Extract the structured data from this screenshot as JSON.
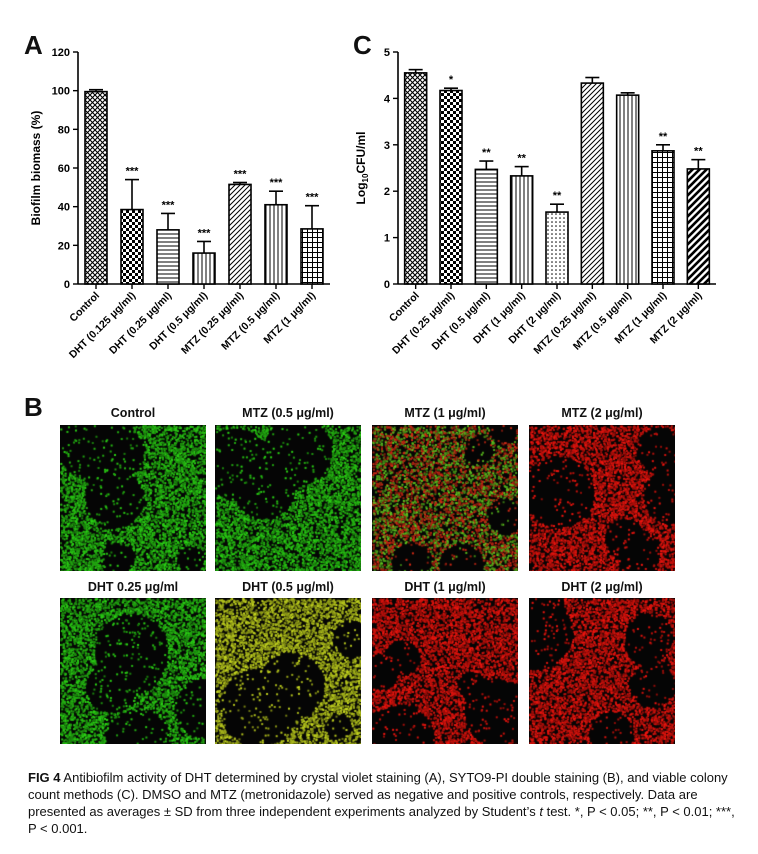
{
  "panels": {
    "A": "A",
    "B": "B",
    "C": "C"
  },
  "chart_data": [
    {
      "type": "bar",
      "panel": "A",
      "ylabel": "Biofilm biomass (%)",
      "ylim": [
        0,
        120
      ],
      "yticks": [
        0,
        20,
        40,
        60,
        80,
        100,
        120
      ],
      "categories": [
        "Control",
        "DHT (0.125 μg/ml)",
        "DHT (0.25 μg/ml)",
        "DHT (0.5 μg/ml)",
        "MTZ (0.25 μg/ml)",
        "MTZ (0.5 μg/ml)",
        "MTZ (1 μg/ml)"
      ],
      "values": [
        99.5,
        38.5,
        28,
        16,
        51.5,
        41,
        28.5
      ],
      "errors": [
        1,
        15.5,
        8.5,
        6,
        1,
        7,
        12
      ],
      "significance": [
        "",
        "***",
        "***",
        "***",
        "***",
        "***",
        "***"
      ],
      "patterns": [
        "cross",
        "checker",
        "hlines",
        "vlines",
        "diag",
        "vlines",
        "grid"
      ]
    },
    {
      "type": "bar",
      "panel": "C",
      "ylabel": "Log10CFU/ml",
      "ylim": [
        0,
        5
      ],
      "yticks": [
        0,
        1,
        2,
        3,
        4,
        5
      ],
      "categories": [
        "Control",
        "DHT (0.25 μg/ml)",
        "DHT (0.5 μg/ml)",
        "DHT (1 μg/ml)",
        "DHT (2 μg/ml)",
        "MTZ (0.25 μg/ml)",
        "MTZ (0.5 μg/ml)",
        "MTZ (1 μg/ml)",
        "MTZ (2 μg/ml)"
      ],
      "values": [
        4.55,
        4.17,
        2.47,
        2.33,
        1.55,
        4.33,
        4.07,
        2.87,
        2.48
      ],
      "errors": [
        0.07,
        0.05,
        0.18,
        0.2,
        0.17,
        0.12,
        0.05,
        0.13,
        0.2
      ],
      "significance": [
        "",
        "*",
        "**",
        "**",
        "**",
        "",
        "",
        "**",
        "**"
      ],
      "patterns": [
        "cross",
        "checker",
        "hlines",
        "vlines",
        "dots",
        "diag",
        "vlines",
        "grid",
        "thickdiag"
      ]
    }
  ],
  "micrographs": {
    "row1": [
      {
        "label": "Control",
        "stain": "green"
      },
      {
        "label": "MTZ (0.5 μg/ml)",
        "stain": "green"
      },
      {
        "label": "MTZ (1 μg/ml)",
        "stain": "mixed"
      },
      {
        "label": "MTZ (2 μg/ml)",
        "stain": "red"
      }
    ],
    "row2": [
      {
        "label": "DHT 0.25 μg/ml",
        "stain": "green"
      },
      {
        "label": "DHT (0.5 μg/ml)",
        "stain": "yellow"
      },
      {
        "label": "DHT (1 μg/ml)",
        "stain": "red"
      },
      {
        "label": "DHT (2 μg/ml)",
        "stain": "red"
      }
    ]
  },
  "colors": {
    "green": "#28c414",
    "red": "#e0140e",
    "yellow": "#b8c81e",
    "background": "#050505"
  },
  "caption": {
    "fig": "FIG 4",
    "text": "Antibiofilm activity of DHT determined by crystal violet staining (A), SYTO9-PI double staining (B), and viable colony count methods (C). DMSO and MTZ (metronidazole) served as negative and positive controls, respectively. Data are presented as averages ± SD from three independent experiments analyzed by Student’s",
    "t": "t",
    "tail": "test. *, P < 0.05; **, P < 0.01; ***, P < 0.001."
  }
}
